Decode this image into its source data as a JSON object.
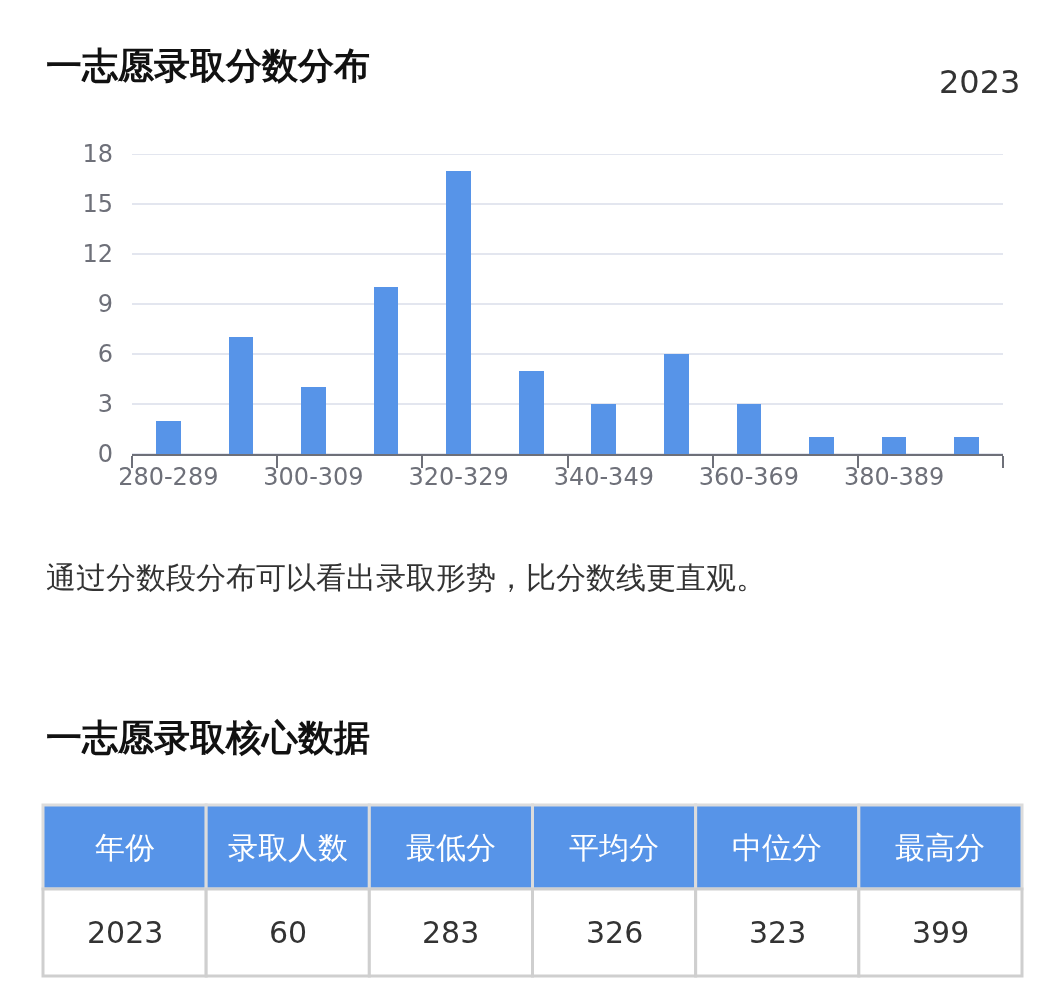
{
  "chart_data": [
    {
      "type": "bar",
      "title": "一志愿录取分数分布",
      "subtitle": "2023",
      "categories": [
        "280-289",
        null,
        "300-309",
        null,
        "320-329",
        null,
        "340-349",
        null,
        "360-369",
        null,
        "380-389",
        null
      ],
      "values": [
        2,
        7,
        4,
        10,
        17,
        5,
        3,
        6,
        3,
        1,
        1,
        1
      ],
      "color": "#5794e8",
      "ylim": [
        0,
        18
      ],
      "yticks": [
        0,
        3,
        6,
        9,
        12,
        15,
        18
      ],
      "grid": "y",
      "annotations": [
        "通过分数段分布可以看出录取形势，比分数线更直观。"
      ]
    },
    {
      "type": "other",
      "title": "一志愿录取核心数据",
      "categories": [
        "年份",
        "录取人数",
        "最低分",
        "平均分",
        "中位分",
        "最高分"
      ],
      "values": [
        2023,
        60,
        283,
        326,
        323,
        399
      ],
      "data_labels": true
    }
  ]
}
